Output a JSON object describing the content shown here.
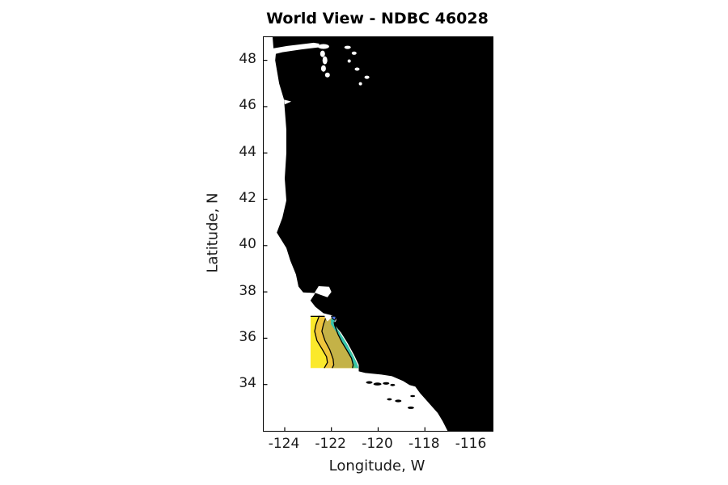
{
  "chart_data": {
    "type": "map-contour",
    "title": "World View - NDBC 46028",
    "station_label": "NDBC 46028",
    "xlabel": "Longitude, W",
    "ylabel": "Latitude, N",
    "xlim": [
      -124.9,
      -115.1
    ],
    "ylim": [
      32.0,
      49.0
    ],
    "x_ticks": [
      -124,
      -122,
      -120,
      -118,
      -116
    ],
    "y_ticks": [
      48,
      46,
      44,
      42,
      40,
      38,
      36,
      34
    ],
    "grid": false,
    "legend": "none",
    "colors": {
      "land": "#000000",
      "ocean": "#ffffff",
      "contour_line": "#000000",
      "axis": "#000000",
      "text": "#1a1a1a"
    },
    "model_domain": {
      "lon": [
        -122.9,
        -120.66
      ],
      "lat": [
        34.71,
        36.97
      ]
    },
    "contour_bands": [
      {
        "order": 1,
        "position": "offshore",
        "color": "#FBE92B"
      },
      {
        "order": 2,
        "position": "mid-offshore",
        "color": "#EFC53C"
      },
      {
        "order": 3,
        "position": "mid-shelf",
        "color": "#C4B247"
      },
      {
        "order": 4,
        "position": "nearshore",
        "color": "#55C36E"
      },
      {
        "order": 5,
        "position": "coastal-strip",
        "color": "#35C3AD"
      },
      {
        "order": 6,
        "position": "monterey-bay-mouth",
        "color": "#4D74DB"
      }
    ],
    "geo": {
      "mainland": [
        [
          -124.52,
          49.0
        ],
        [
          -124.48,
          48.52
        ],
        [
          -123.9,
          48.62
        ],
        [
          -122.76,
          48.76
        ],
        [
          -122.52,
          48.72
        ],
        [
          -122.55,
          48.56
        ],
        [
          -123.31,
          48.47
        ],
        [
          -124.1,
          48.35
        ],
        [
          -124.38,
          48.28
        ],
        [
          -124.41,
          48.0
        ],
        [
          -124.24,
          47.0
        ],
        [
          -124.03,
          46.3
        ],
        [
          -124.0,
          45.9
        ],
        [
          -123.93,
          45.0
        ],
        [
          -123.93,
          44.0
        ],
        [
          -124.0,
          42.9
        ],
        [
          -123.93,
          41.95
        ],
        [
          -124.1,
          41.2
        ],
        [
          -124.34,
          40.56
        ],
        [
          -123.93,
          39.9
        ],
        [
          -123.76,
          39.35
        ],
        [
          -123.52,
          38.75
        ],
        [
          -123.41,
          38.23
        ],
        [
          -123.21,
          37.98
        ],
        [
          -122.69,
          37.95
        ],
        [
          -122.9,
          37.63
        ],
        [
          -122.69,
          37.36
        ],
        [
          -122.34,
          37.08
        ],
        [
          -122.03,
          37.0
        ],
        [
          -121.83,
          36.93
        ],
        [
          -121.79,
          36.78
        ],
        [
          -121.9,
          36.62
        ],
        [
          -121.59,
          36.24
        ],
        [
          -121.31,
          35.79
        ],
        [
          -121.03,
          35.27
        ],
        [
          -120.83,
          34.85
        ],
        [
          -120.83,
          34.57
        ],
        [
          -120.55,
          34.5
        ],
        [
          -119.86,
          34.43
        ],
        [
          -119.41,
          34.36
        ],
        [
          -118.93,
          34.15
        ],
        [
          -118.66,
          33.98
        ],
        [
          -118.41,
          33.91
        ],
        [
          -118.21,
          33.63
        ],
        [
          -117.97,
          33.36
        ],
        [
          -117.72,
          33.08
        ],
        [
          -117.45,
          32.77
        ],
        [
          -117.24,
          32.42
        ],
        [
          -117.03,
          32.0
        ],
        [
          -115.1,
          32.0
        ],
        [
          -115.1,
          49.0
        ]
      ],
      "contour1": [
        [
          -122.52,
          36.97
        ],
        [
          -122.66,
          36.6
        ],
        [
          -122.72,
          36.3
        ],
        [
          -122.62,
          35.9
        ],
        [
          -122.41,
          35.55
        ],
        [
          -122.21,
          35.2
        ],
        [
          -122.17,
          34.95
        ],
        [
          -122.31,
          34.71
        ]
      ],
      "contour2": [
        [
          -122.21,
          36.97
        ],
        [
          -122.34,
          36.6
        ],
        [
          -122.41,
          36.3
        ],
        [
          -122.28,
          35.9
        ],
        [
          -122.07,
          35.5
        ],
        [
          -121.93,
          35.1
        ],
        [
          -121.9,
          34.85
        ],
        [
          -121.97,
          34.71
        ]
      ],
      "contour3": [
        [
          -121.9,
          36.8
        ],
        [
          -121.86,
          36.56
        ],
        [
          -121.72,
          36.17
        ],
        [
          -121.55,
          35.83
        ],
        [
          -121.34,
          35.48
        ],
        [
          -121.14,
          35.13
        ],
        [
          -121.07,
          34.85
        ],
        [
          -121.1,
          34.71
        ]
      ],
      "coast_in_domain": [
        [
          -121.79,
          36.97
        ],
        [
          -121.86,
          36.66
        ],
        [
          -121.59,
          36.24
        ],
        [
          -121.31,
          35.79
        ],
        [
          -121.03,
          35.27
        ],
        [
          -120.83,
          34.85
        ],
        [
          -120.8,
          34.71
        ]
      ],
      "teal_line": [
        [
          -121.93,
          36.9
        ],
        [
          -121.97,
          36.63
        ],
        [
          -121.69,
          36.21
        ],
        [
          -121.41,
          35.76
        ],
        [
          -121.14,
          35.24
        ],
        [
          -120.93,
          34.82
        ],
        [
          -120.9,
          34.71
        ]
      ],
      "blue_patch": [
        [
          -122.0,
          36.95
        ],
        [
          -121.8,
          36.95
        ],
        [
          -121.85,
          36.78
        ],
        [
          -121.96,
          36.84
        ]
      ],
      "teal_patch": [
        [
          -122.0,
          36.84
        ],
        [
          -121.84,
          36.77
        ],
        [
          -121.95,
          36.65
        ],
        [
          -122.03,
          36.75
        ]
      ],
      "monterey_bay_notch": [
        [
          -122.31,
          37.05
        ],
        [
          -121.97,
          36.97
        ],
        [
          -122.0,
          36.88
        ],
        [
          -122.17,
          36.73
        ],
        [
          -122.28,
          36.9
        ]
      ],
      "sf_bay": [
        [
          -122.72,
          37.97
        ],
        [
          -122.55,
          38.25
        ],
        [
          -122.1,
          38.22
        ],
        [
          -122.0,
          38.0
        ],
        [
          -122.17,
          37.77
        ],
        [
          -122.48,
          37.88
        ]
      ],
      "columbia_river": [
        [
          -124.03,
          46.3
        ],
        [
          -123.72,
          46.22
        ],
        [
          -124.0,
          46.1
        ]
      ],
      "inland_waters": [
        [
          -122.34,
          48.6,
          7,
          3
        ],
        [
          -122.38,
          48.28,
          3,
          4
        ],
        [
          -122.28,
          48.0,
          3,
          5
        ],
        [
          -122.34,
          47.65,
          3,
          4
        ],
        [
          -122.17,
          47.37,
          3,
          3
        ],
        [
          -121.31,
          48.56,
          4,
          2
        ],
        [
          -121.03,
          48.31,
          3,
          2
        ],
        [
          -121.24,
          47.97,
          2,
          2
        ],
        [
          -120.9,
          47.62,
          3,
          2
        ],
        [
          -120.48,
          47.27,
          3,
          2
        ],
        [
          -120.76,
          46.99,
          2,
          2
        ]
      ],
      "islands": [
        [
          -120.38,
          34.09,
          4,
          1.6
        ],
        [
          -120.03,
          34.02,
          5,
          1.8
        ],
        [
          -119.66,
          34.05,
          4,
          1.6
        ],
        [
          -119.38,
          33.98,
          3,
          1.4
        ],
        [
          -119.52,
          33.36,
          3,
          1.4
        ],
        [
          -119.14,
          33.29,
          4,
          1.6
        ],
        [
          -118.52,
          33.5,
          3,
          1.3
        ],
        [
          -118.6,
          33.0,
          4,
          1.5
        ]
      ]
    }
  }
}
